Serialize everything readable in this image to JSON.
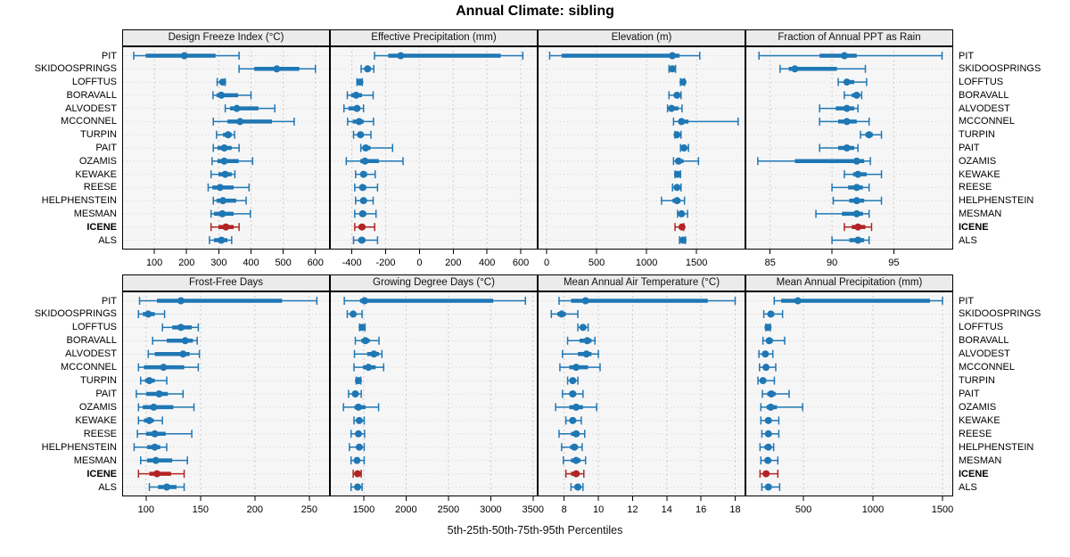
{
  "title": "Annual Climate: sibling",
  "caption": "5th-25th-50th-75th-95th Percentiles",
  "highlight_station": "ICENE",
  "colors": {
    "bar": "#1f77b4",
    "highlight": "#b22424",
    "strip_bg": "#ebebeb",
    "panel_bg": "#f6f6f6",
    "grid": "#cccccc",
    "axis": "#000000"
  },
  "stations": [
    "PIT",
    "SKIDOOSPRINGS",
    "LOFFTUS",
    "BORAVALL",
    "ALVODEST",
    "MCCONNEL",
    "TURPIN",
    "PAIT",
    "OZAMIS",
    "KEWAKE",
    "REESE",
    "HELPHENSTEIN",
    "MESMAN",
    "ICENE",
    "ALS"
  ],
  "chart_data": {
    "type": "error-bar-trellis",
    "percentiles": [
      "5th",
      "25th",
      "50th",
      "75th",
      "95th"
    ],
    "legend_position": "none",
    "grid": true,
    "panels": [
      {
        "title": "Design Freeze Index (°C)",
        "xlim": [
          0,
          645
        ],
        "ticks": [
          100,
          200,
          300,
          400,
          500,
          600
        ],
        "values": [
          [
            36,
            73,
            193,
            290,
            363
          ],
          [
            363,
            410,
            480,
            550,
            600
          ],
          [
            295,
            302,
            312,
            316,
            320
          ],
          [
            282,
            293,
            308,
            360,
            400
          ],
          [
            320,
            335,
            356,
            423,
            474
          ],
          [
            283,
            327,
            366,
            465,
            534
          ],
          [
            293,
            313,
            329,
            340,
            349
          ],
          [
            283,
            296,
            317,
            340,
            363
          ],
          [
            279,
            296,
            317,
            362,
            405
          ],
          [
            276,
            299,
            320,
            340,
            350
          ],
          [
            267,
            280,
            304,
            346,
            394
          ],
          [
            283,
            293,
            313,
            354,
            385
          ],
          [
            276,
            285,
            311,
            346,
            398
          ],
          [
            276,
            299,
            322,
            346,
            363
          ],
          [
            271,
            285,
            308,
            327,
            340
          ]
        ]
      },
      {
        "title": "Effective Precipitation (mm)",
        "xlim": [
          -530,
          700
        ],
        "ticks": [
          -400,
          -200,
          0,
          200,
          400,
          600
        ],
        "values": [
          [
            -266,
            -185,
            -111,
            481,
            612
          ],
          [
            -345,
            -325,
            -307,
            -288,
            -270
          ],
          [
            -370,
            -360,
            -353,
            -346,
            -338
          ],
          [
            -427,
            -405,
            -375,
            -340,
            -274
          ],
          [
            -447,
            -420,
            -370,
            -350,
            -331
          ],
          [
            -425,
            -395,
            -357,
            -330,
            -272
          ],
          [
            -390,
            -368,
            -349,
            -330,
            -287
          ],
          [
            -347,
            -330,
            -318,
            -290,
            -159
          ],
          [
            -433,
            -350,
            -323,
            -240,
            -97
          ],
          [
            -378,
            -350,
            -331,
            -310,
            -262
          ],
          [
            -383,
            -355,
            -336,
            -315,
            -248
          ],
          [
            -378,
            -350,
            -331,
            -312,
            -274
          ],
          [
            -383,
            -356,
            -336,
            -315,
            -257
          ],
          [
            -383,
            -360,
            -340,
            -320,
            -265
          ],
          [
            -390,
            -362,
            -341,
            -320,
            -248
          ]
        ]
      },
      {
        "title": "Elevation (m)",
        "xlim": [
          -90,
          1990
        ],
        "ticks": [
          0,
          500,
          1000,
          1500
        ],
        "values": [
          [
            30,
            150,
            1258,
            1330,
            1533
          ],
          [
            1225,
            1245,
            1258,
            1272,
            1290
          ],
          [
            1340,
            1355,
            1365,
            1372,
            1380
          ],
          [
            1225,
            1275,
            1305,
            1330,
            1345
          ],
          [
            1210,
            1235,
            1250,
            1320,
            1355
          ],
          [
            1270,
            1320,
            1350,
            1420,
            1917
          ],
          [
            1285,
            1295,
            1305,
            1330,
            1345
          ],
          [
            1340,
            1360,
            1375,
            1395,
            1420
          ],
          [
            1270,
            1300,
            1320,
            1370,
            1520
          ],
          [
            1285,
            1298,
            1310,
            1325,
            1340
          ],
          [
            1260,
            1285,
            1305,
            1325,
            1345
          ],
          [
            1150,
            1260,
            1305,
            1340,
            1380
          ],
          [
            1310,
            1332,
            1350,
            1375,
            1410
          ],
          [
            1285,
            1335,
            1355,
            1365,
            1372
          ],
          [
            1330,
            1350,
            1365,
            1378,
            1390
          ]
        ]
      },
      {
        "title": "Fraction of Annual PPT as Rain",
        "xlim": [
          83,
          99.8
        ],
        "ticks": [
          85,
          90,
          95
        ],
        "values": [
          [
            84.1,
            89.0,
            91.0,
            92.0,
            98.9
          ],
          [
            85.8,
            86.5,
            87.0,
            90.4,
            92.7
          ],
          [
            90.5,
            91.0,
            91.2,
            91.8,
            92.8
          ],
          [
            91.0,
            91.6,
            92.0,
            92.2,
            92.4
          ],
          [
            89.0,
            90.3,
            91.2,
            91.8,
            92.1
          ],
          [
            89.0,
            90.5,
            91.2,
            92.0,
            93.0
          ],
          [
            92.3,
            92.7,
            93.0,
            93.3,
            94.0
          ],
          [
            89.0,
            90.5,
            91.2,
            91.8,
            92.1
          ],
          [
            84.0,
            87.0,
            92.0,
            92.6,
            93.1
          ],
          [
            91.0,
            91.7,
            92.1,
            92.8,
            94.0
          ],
          [
            90.0,
            91.3,
            92.0,
            92.5,
            93.0
          ],
          [
            90.1,
            91.4,
            92.0,
            92.6,
            94.0
          ],
          [
            88.7,
            90.8,
            92.0,
            92.5,
            93.0
          ],
          [
            91.0,
            91.6,
            92.1,
            92.7,
            93.2
          ],
          [
            90.0,
            91.4,
            92.1,
            92.6,
            93.0
          ]
        ]
      },
      {
        "title": "Frost-Free Days",
        "xlim": [
          78,
          269
        ],
        "ticks": [
          100,
          150,
          200,
          250
        ],
        "values": [
          [
            94,
            110,
            132,
            225,
            257
          ],
          [
            93,
            97,
            102,
            108,
            117
          ],
          [
            115,
            124,
            132,
            142,
            148
          ],
          [
            106,
            119,
            136,
            143,
            147
          ],
          [
            102,
            108,
            134,
            140,
            149
          ],
          [
            93,
            98,
            116,
            135,
            148
          ],
          [
            95,
            99,
            103,
            108,
            119
          ],
          [
            91,
            100,
            112,
            120,
            134
          ],
          [
            93,
            97,
            107,
            125,
            144
          ],
          [
            93,
            98,
            103,
            107,
            115
          ],
          [
            92,
            100,
            108,
            118,
            142
          ],
          [
            89,
            101,
            108,
            113,
            119
          ],
          [
            95,
            101,
            109,
            124,
            138
          ],
          [
            93,
            103,
            110,
            123,
            135
          ],
          [
            103,
            111,
            119,
            128,
            135
          ]
        ]
      },
      {
        "title": "Growing Degree Days (°C)",
        "xlim": [
          1100,
          3555
        ],
        "ticks": [
          1500,
          2000,
          2500,
          3000,
          3500
        ],
        "values": [
          [
            1270,
            1455,
            1510,
            3030,
            3410
          ],
          [
            1305,
            1340,
            1375,
            1410,
            1480
          ],
          [
            1450,
            1470,
            1480,
            1495,
            1515
          ],
          [
            1400,
            1470,
            1520,
            1570,
            1680
          ],
          [
            1390,
            1540,
            1620,
            1680,
            1715
          ],
          [
            1385,
            1490,
            1555,
            1640,
            1735
          ],
          [
            1410,
            1425,
            1437,
            1450,
            1465
          ],
          [
            1320,
            1370,
            1400,
            1430,
            1470
          ],
          [
            1260,
            1390,
            1437,
            1520,
            1675
          ],
          [
            1385,
            1420,
            1447,
            1470,
            1505
          ],
          [
            1350,
            1410,
            1437,
            1465,
            1510
          ],
          [
            1330,
            1415,
            1447,
            1470,
            1505
          ],
          [
            1350,
            1395,
            1420,
            1450,
            1505
          ],
          [
            1375,
            1405,
            1427,
            1450,
            1470
          ],
          [
            1350,
            1400,
            1427,
            1455,
            1480
          ]
        ]
      },
      {
        "title": "Mean Annual Air Temperature (°C)",
        "xlim": [
          6.45,
          18.6
        ],
        "ticks": [
          8,
          10,
          12,
          14,
          16,
          18
        ],
        "values": [
          [
            7.7,
            8.4,
            9.25,
            16.4,
            18.0
          ],
          [
            7.25,
            7.6,
            7.85,
            8.1,
            8.8
          ],
          [
            8.8,
            9.0,
            9.1,
            9.25,
            9.4
          ],
          [
            8.2,
            8.9,
            9.35,
            9.6,
            9.8
          ],
          [
            7.9,
            8.8,
            9.3,
            9.6,
            10.0
          ],
          [
            7.75,
            8.3,
            8.7,
            9.4,
            10.1
          ],
          [
            8.2,
            8.35,
            8.5,
            8.65,
            8.8
          ],
          [
            7.9,
            8.3,
            8.5,
            8.7,
            9.1
          ],
          [
            7.5,
            8.3,
            8.7,
            9.1,
            9.9
          ],
          [
            8.1,
            8.35,
            8.5,
            8.7,
            9.0
          ],
          [
            7.7,
            8.4,
            8.7,
            8.9,
            9.2
          ],
          [
            7.85,
            8.35,
            8.6,
            8.8,
            9.05
          ],
          [
            7.95,
            8.4,
            8.7,
            8.95,
            9.25
          ],
          [
            8.1,
            8.4,
            8.7,
            8.9,
            9.15
          ],
          [
            8.4,
            8.6,
            8.8,
            8.95,
            9.1
          ]
        ]
      },
      {
        "title": "Mean Annual Precipitation (mm)",
        "xlim": [
          83,
          1577
        ],
        "ticks": [
          500,
          1000,
          1500
        ],
        "values": [
          [
            290,
            340,
            460,
            1410,
            1500
          ],
          [
            215,
            245,
            265,
            290,
            350
          ],
          [
            230,
            240,
            245,
            252,
            262
          ],
          [
            209,
            235,
            254,
            280,
            365
          ],
          [
            180,
            208,
            226,
            245,
            280
          ],
          [
            184,
            212,
            231,
            252,
            301
          ],
          [
            173,
            195,
            209,
            230,
            291
          ],
          [
            205,
            240,
            269,
            300,
            397
          ],
          [
            194,
            235,
            265,
            310,
            494
          ],
          [
            194,
            225,
            248,
            270,
            323
          ],
          [
            201,
            228,
            248,
            270,
            323
          ],
          [
            188,
            220,
            248,
            262,
            286
          ],
          [
            194,
            222,
            244,
            268,
            316
          ],
          [
            188,
            215,
            231,
            255,
            316
          ],
          [
            201,
            228,
            248,
            272,
            329
          ]
        ]
      }
    ]
  }
}
